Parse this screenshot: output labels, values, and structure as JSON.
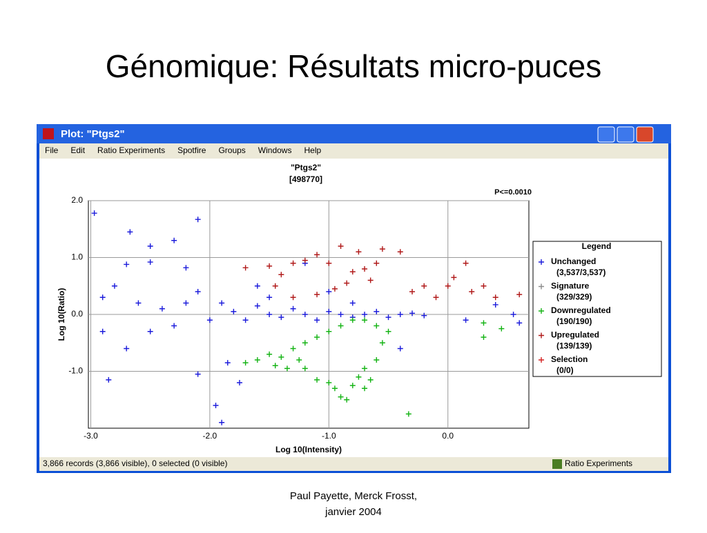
{
  "slide_title": "Génomique: Résultats micro-puces",
  "window_title": "Plot: \"Ptgs2\"",
  "menu": [
    "File",
    "Edit",
    "Ratio Experiments",
    "Spotfire",
    "Groups",
    "Windows",
    "Help"
  ],
  "status": {
    "text": "3,866 records (3,866 visible), 0 selected (0 visible)",
    "panel": "Ratio Experiments"
  },
  "footer": [
    "Paul Payette, Merck Frosst,",
    "janvier 2004"
  ],
  "chart_data": {
    "type": "scatter",
    "title": "\"Ptgs2\"",
    "subtitle": "[498770]",
    "annotation": "P<=0.0010",
    "x_label": "Log 10(Intensity)",
    "y_label": "Log 10(Ratio)",
    "xlim": [
      -3.02,
      0.68
    ],
    "ylim": [
      -2.0,
      2.0
    ],
    "xticks": [
      {
        "value": -3,
        "label": "-3.0"
      },
      {
        "value": -2,
        "label": "-2.0"
      },
      {
        "value": -1,
        "label": "-1.0"
      },
      {
        "value": 0,
        "label": "0.0"
      }
    ],
    "yticks": [
      {
        "value": 2,
        "label": "2.0"
      },
      {
        "value": 1,
        "label": "1.0"
      },
      {
        "value": 0,
        "label": "0.0"
      },
      {
        "value": -1,
        "label": "-1.0"
      }
    ],
    "grid": true,
    "legend_title": "Legend",
    "legend": "right",
    "series": [
      {
        "name": "Unchanged",
        "count": "(3,537/3,537)",
        "color": "#1a1adb",
        "x": [
          -2.97,
          -2.67,
          -2.5,
          -2.3,
          -2.1,
          -2.7,
          -2.5,
          -2.2,
          -2.9,
          -2.8,
          -2.6,
          -2.4,
          -2.3,
          -2.1,
          -2.0,
          -1.9,
          -1.8,
          -1.7,
          -1.6,
          -1.5,
          -1.4,
          -1.3,
          -1.2,
          -1.1,
          -1.0,
          -0.9,
          -0.8,
          -0.7,
          -0.6,
          -0.5,
          -0.4,
          -0.3,
          -0.2,
          -2.9,
          -2.85,
          -2.7,
          -2.1,
          -1.85,
          -1.75,
          -1.9,
          -1.95,
          0.4,
          0.55,
          0.6,
          0.15,
          -1.2,
          -1.6,
          -1.0,
          -0.4,
          -2.5,
          -2.2,
          -1.5,
          -0.8
        ],
        "values": [
          1.78,
          1.45,
          1.2,
          1.3,
          1.67,
          0.88,
          0.92,
          0.82,
          0.3,
          0.5,
          0.2,
          0.1,
          -0.2,
          0.4,
          -0.1,
          0.2,
          0.05,
          -0.1,
          0.15,
          0,
          -0.05,
          0.1,
          0,
          -0.1,
          0.05,
          0,
          -0.05,
          0,
          0.05,
          -0.05,
          0,
          0.02,
          -0.02,
          -0.3,
          -1.15,
          -0.6,
          -1.05,
          -0.85,
          -1.2,
          -1.9,
          -1.6,
          0.17,
          0,
          -0.15,
          -0.1,
          0.9,
          0.5,
          0.4,
          -0.6,
          -0.3,
          0.2,
          0.3,
          0.2
        ]
      },
      {
        "name": "Signature",
        "count": "(329/329)",
        "color": "#8c8c8c",
        "x": [],
        "values": []
      },
      {
        "name": "Downregulated",
        "count": "(190/190)",
        "color": "#13b313",
        "x": [
          -1.6,
          -1.5,
          -1.4,
          -1.3,
          -1.45,
          -1.2,
          -1.1,
          -1.0,
          -1.7,
          -1.35,
          -1.25,
          -0.9,
          -0.8,
          -0.7,
          -0.6,
          -0.5,
          -0.55,
          -0.6,
          -0.7,
          -0.75,
          -1.1,
          -1.0,
          -0.95,
          -0.9,
          -0.85,
          -0.8,
          -0.65,
          -0.7,
          -0.33,
          0.3,
          0.45,
          0.3,
          -1.2
        ],
        "values": [
          -0.8,
          -0.7,
          -0.75,
          -0.6,
          -0.9,
          -0.5,
          -0.4,
          -0.3,
          -0.85,
          -0.95,
          -0.8,
          -0.2,
          -0.1,
          -0.1,
          -0.2,
          -0.3,
          -0.5,
          -0.8,
          -0.95,
          -1.1,
          -1.15,
          -1.2,
          -1.3,
          -1.45,
          -1.5,
          -1.25,
          -1.15,
          -1.3,
          -1.75,
          -0.15,
          -0.25,
          -0.4,
          -0.95
        ]
      },
      {
        "name": "Upregulated",
        "count": "(139/139)",
        "color": "#b01818",
        "x": [
          -1.7,
          -1.5,
          -1.4,
          -1.3,
          -1.2,
          -1.1,
          -1.0,
          -0.9,
          -0.8,
          -0.75,
          -0.7,
          -0.6,
          -0.55,
          -0.4,
          -0.3,
          -0.2,
          -0.1,
          0.0,
          0.05,
          0.15,
          0.2,
          0.3,
          0.4,
          0.6,
          -1.45,
          -1.3,
          -1.1,
          -0.95,
          -0.85,
          -0.65
        ],
        "values": [
          0.82,
          0.85,
          0.7,
          0.9,
          0.95,
          1.05,
          0.9,
          1.2,
          0.75,
          1.1,
          0.8,
          0.9,
          1.15,
          1.1,
          0.4,
          0.5,
          0.3,
          0.5,
          0.65,
          0.9,
          0.4,
          0.5,
          0.3,
          0.35,
          0.5,
          0.3,
          0.35,
          0.45,
          0.55,
          0.6
        ]
      },
      {
        "name": "Selection",
        "count": "(0/0)",
        "color": "#d42020",
        "x": [],
        "values": []
      }
    ]
  }
}
